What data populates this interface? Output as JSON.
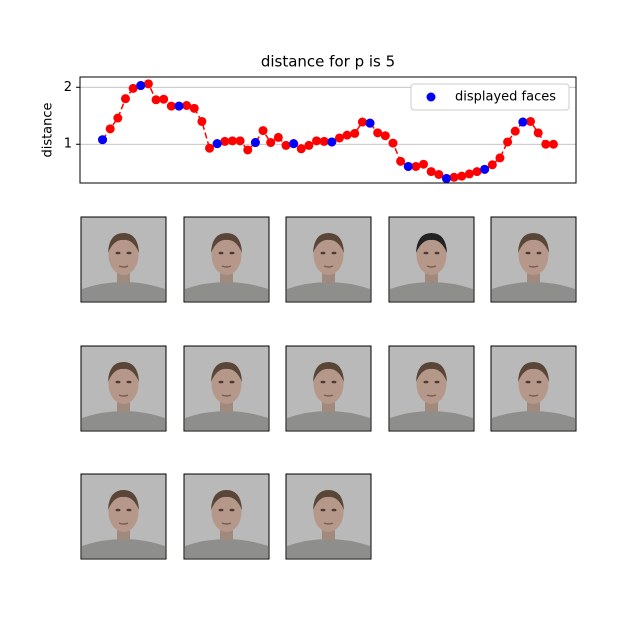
{
  "chart_data": {
    "type": "line",
    "title": "distance for p is 5",
    "y_label": "distance",
    "x": [
      0,
      1,
      2,
      3,
      4,
      5,
      6,
      7,
      8,
      9,
      10,
      11,
      12,
      13,
      14,
      15,
      16,
      17,
      18,
      19,
      20,
      21,
      22,
      23,
      24,
      25,
      26,
      27,
      28,
      29,
      30,
      31,
      32,
      33,
      34,
      35,
      36,
      37,
      38,
      39,
      40,
      41,
      42,
      43,
      44,
      45,
      46,
      47,
      48,
      49,
      50,
      51,
      52,
      53,
      54,
      55,
      56,
      57,
      58,
      59
    ],
    "values": [
      1.08,
      1.27,
      1.46,
      1.8,
      1.98,
      2.03,
      2.06,
      1.78,
      1.79,
      1.67,
      1.67,
      1.68,
      1.63,
      1.4,
      0.93,
      1.01,
      1.05,
      1.06,
      1.06,
      0.9,
      1.03,
      1.24,
      1.03,
      1.12,
      0.98,
      1.01,
      0.92,
      0.98,
      1.06,
      1.05,
      1.04,
      1.11,
      1.16,
      1.19,
      1.39,
      1.37,
      1.2,
      1.15,
      1.02,
      0.7,
      0.61,
      0.61,
      0.65,
      0.52,
      0.47,
      0.4,
      0.42,
      0.44,
      0.48,
      0.52,
      0.56,
      0.64,
      0.76,
      1.04,
      1.23,
      1.39,
      1.4,
      1.2,
      1.0,
      1.0
    ],
    "color": "red",
    "highlight": {
      "name": "displayed faces",
      "color": "blue",
      "x": [
        0,
        5,
        10,
        15,
        20,
        25,
        30,
        35,
        40,
        45,
        50,
        55
      ],
      "values": [
        1.08,
        2.03,
        1.67,
        1.01,
        1.03,
        1.01,
        1.04,
        1.37,
        0.61,
        0.4,
        0.56,
        1.39
      ]
    },
    "xlim": [
      -2.95,
      61.95
    ],
    "ylim": [
      0.32,
      2.18
    ],
    "yticks": [
      1,
      2
    ],
    "grid": true,
    "legend": "upper right"
  }
}
